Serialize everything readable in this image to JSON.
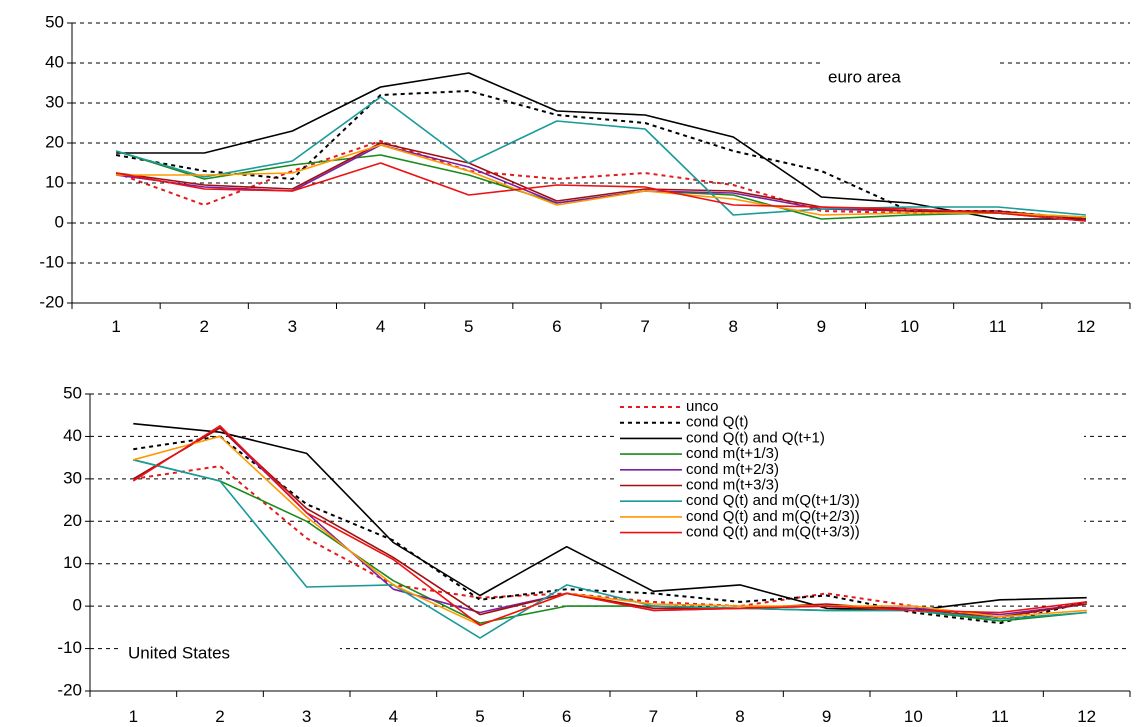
{
  "chart_data": [
    {
      "type": "line",
      "annotation": "euro area",
      "x": [
        1,
        2,
        3,
        4,
        5,
        6,
        7,
        8,
        9,
        10,
        11,
        12
      ],
      "ylim": [
        -20,
        50
      ],
      "yticks": [
        -20,
        -10,
        0,
        10,
        20,
        30,
        40,
        50
      ],
      "grid": true,
      "series": [
        {
          "name": "unco",
          "color": "#e41a1c",
          "dash": "dot",
          "values": [
            12.5,
            4.5,
            13,
            20.5,
            13,
            11,
            12.5,
            9.5,
            3,
            2.5,
            2.5,
            1
          ]
        },
        {
          "name": "cond Q(t)",
          "color": "#000000",
          "dash": "dot",
          "values": [
            17,
            13,
            11,
            32,
            33,
            27,
            25,
            18,
            13,
            3,
            3,
            1
          ]
        },
        {
          "name": "cond Q(t) and Q(t+1)",
          "color": "#000000",
          "dash": "solid",
          "values": [
            17.5,
            17.5,
            23,
            34,
            37.5,
            28,
            27,
            21.5,
            6.5,
            5,
            1,
            1
          ]
        },
        {
          "name": "cond m(t+1/3)",
          "color": "#1a8a1a",
          "dash": "solid",
          "values": [
            18,
            11,
            14.5,
            17,
            12,
            5,
            8,
            7,
            1,
            2,
            2.5,
            1.5
          ]
        },
        {
          "name": "cond m(t+2/3)",
          "color": "#7b1fa2",
          "dash": "solid",
          "values": [
            12,
            9,
            8,
            19.5,
            14,
            5,
            8,
            7.5,
            3.5,
            3,
            2.5,
            0.5
          ]
        },
        {
          "name": "cond m(t+3/3)",
          "color": "#a01010",
          "dash": "solid",
          "values": [
            12.5,
            9.5,
            8.5,
            20,
            15,
            5.5,
            8.5,
            8,
            4,
            3,
            3,
            1
          ]
        },
        {
          "name": "cond Q(t) and m(Q(t+1/3))",
          "color": "#1a9a9a",
          "dash": "solid",
          "values": [
            18,
            11.5,
            15.5,
            31.5,
            15,
            25.5,
            23.5,
            2,
            3.5,
            4,
            4,
            2
          ]
        },
        {
          "name": "cond Q(t) and m(Q(t+2/3))",
          "color": "#ff9900",
          "dash": "solid",
          "values": [
            12,
            12,
            12.5,
            19.5,
            13,
            4.5,
            8,
            6,
            2,
            2.5,
            2.5,
            1.5
          ]
        },
        {
          "name": "cond Q(t) and m(Q(t+3/3))",
          "color": "#ee1111",
          "dash": "solid",
          "values": [
            12.5,
            8.5,
            8,
            15,
            7,
            9.5,
            9,
            4.5,
            4,
            3.5,
            2.5,
            0.5
          ]
        }
      ]
    },
    {
      "type": "line",
      "annotation": "United States",
      "x": [
        1,
        2,
        3,
        4,
        5,
        6,
        7,
        8,
        9,
        10,
        11,
        12
      ],
      "ylim": [
        -20,
        50
      ],
      "yticks": [
        -20,
        -10,
        0,
        10,
        20,
        30,
        40,
        50
      ],
      "grid": true,
      "legend": "top-right",
      "series": [
        {
          "name": "unco",
          "color": "#e41a1c",
          "dash": "dot",
          "values": [
            30,
            33,
            16,
            5,
            2,
            3,
            1,
            0,
            3,
            0,
            -3,
            1
          ]
        },
        {
          "name": "cond Q(t)",
          "color": "#000000",
          "dash": "dot",
          "values": [
            37,
            40,
            24,
            15.5,
            1.5,
            4,
            3,
            1,
            2.5,
            -1.5,
            -4,
            1
          ]
        },
        {
          "name": "cond Q(t) and Q(t+1)",
          "color": "#000000",
          "dash": "solid",
          "values": [
            43,
            41,
            36,
            15,
            2.5,
            14,
            3.5,
            5,
            -0.5,
            -1,
            1.5,
            2
          ]
        },
        {
          "name": "cond m(t+1/3)",
          "color": "#1a8a1a",
          "dash": "solid",
          "values": [
            34.5,
            29.5,
            20,
            6,
            -4,
            0,
            0,
            -0.5,
            -1,
            -1,
            -3.5,
            -1.5
          ]
        },
        {
          "name": "cond m(t+2/3)",
          "color": "#7b1fa2",
          "dash": "solid",
          "values": [
            30,
            42,
            22,
            4,
            -1.5,
            3,
            -1,
            -0.5,
            0,
            -0.5,
            -2,
            0.5
          ]
        },
        {
          "name": "cond m(t+3/3)",
          "color": "#a01010",
          "dash": "solid",
          "values": [
            30,
            42,
            23,
            11.5,
            -2,
            3,
            -0.5,
            -0.5,
            0.5,
            -1,
            -2.5,
            0.5
          ]
        },
        {
          "name": "cond Q(t) and m(Q(t+1/3))",
          "color": "#1a9a9a",
          "dash": "solid",
          "values": [
            34.5,
            29.5,
            4.5,
            5,
            -7.5,
            5,
            0,
            -0.5,
            -1,
            -1,
            -3,
            -1.5
          ]
        },
        {
          "name": "cond Q(t) and m(Q(t+2/3))",
          "color": "#ff9900",
          "dash": "solid",
          "values": [
            34.5,
            40,
            21,
            5,
            -4.5,
            3,
            0.5,
            0,
            0,
            0,
            -2.5,
            -1
          ]
        },
        {
          "name": "cond Q(t) and m(Q(t+3/3))",
          "color": "#ee1111",
          "dash": "solid",
          "values": [
            29.5,
            42.5,
            22,
            11,
            -4.5,
            3,
            -1,
            -0.5,
            0,
            -1,
            -1.5,
            1
          ]
        }
      ]
    }
  ]
}
